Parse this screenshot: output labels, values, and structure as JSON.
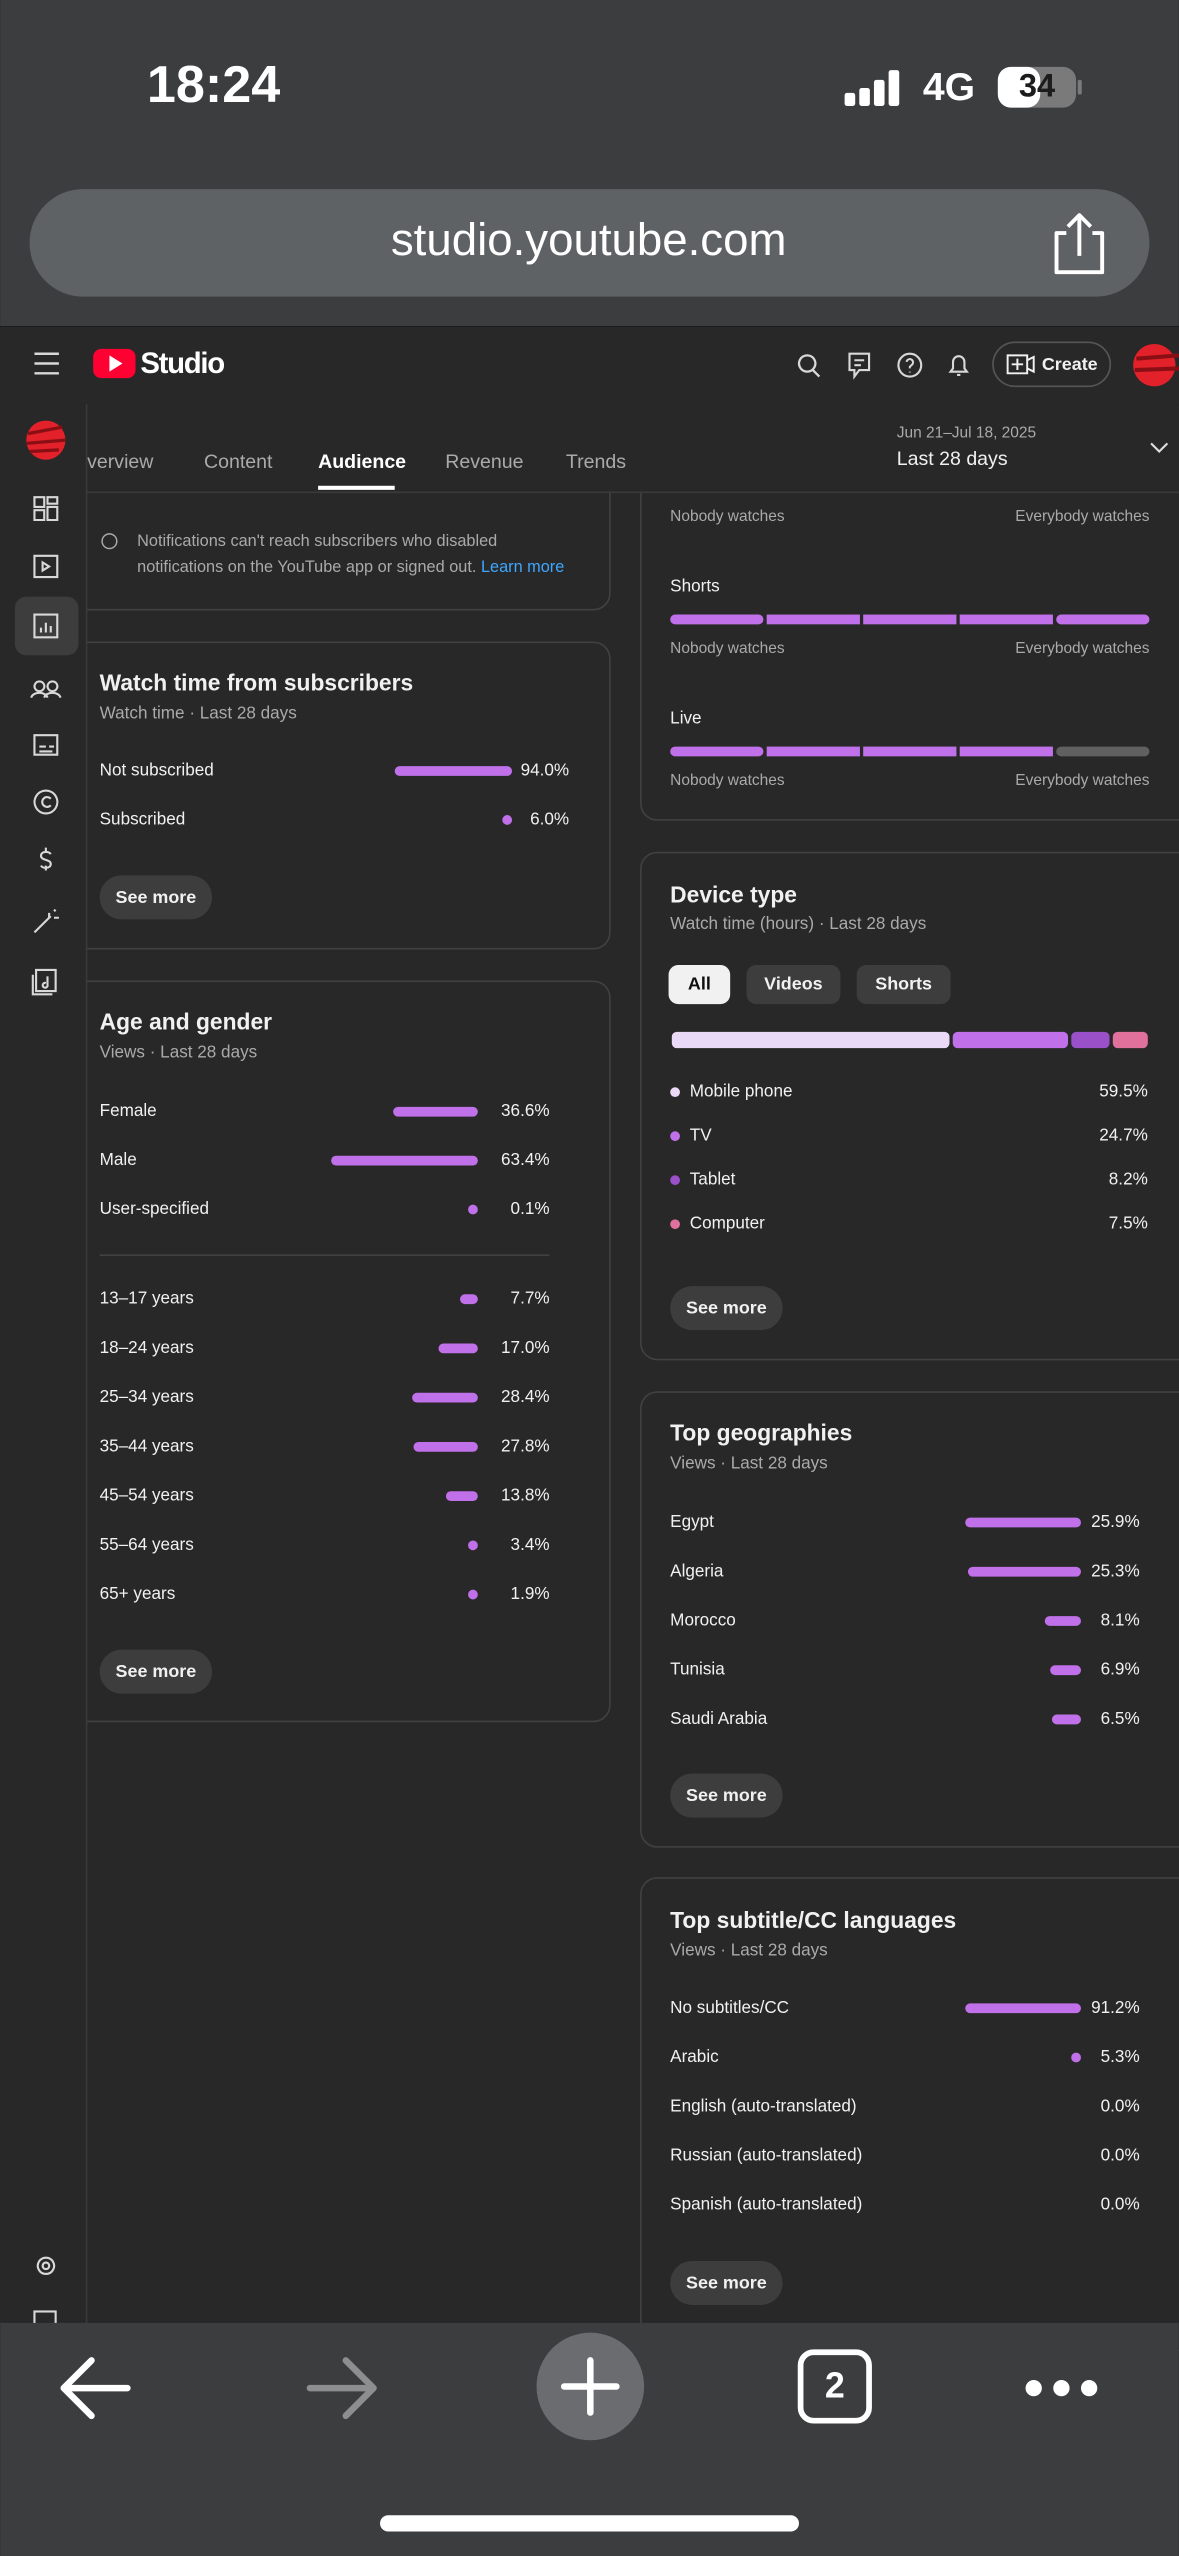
{
  "status": {
    "time": "18:24",
    "network": "4G",
    "battery": "34"
  },
  "browser": {
    "url": "studio.youtube.com",
    "tab_count": "2"
  },
  "header": {
    "logo": "Studio",
    "create": "Create"
  },
  "tabs": {
    "items": [
      "Overview",
      "Content",
      "Audience",
      "Revenue",
      "Trends"
    ],
    "active": 2
  },
  "date": {
    "range": "Jun 21–Jul 18, 2025",
    "period": "Last 28 days"
  },
  "notice": {
    "text": "Notifications can't reach subscribers who disabled notifications on the YouTube app or signed out.",
    "link": "Learn more"
  },
  "retention": {
    "top_scale": [
      "Nobody watches",
      "Everybody watches"
    ],
    "rows": [
      {
        "name": "Shorts",
        "scale": [
          "Nobody watches",
          "Everybody watches"
        ],
        "segment_colors": [
          "#c070e8",
          "#c070e8",
          "#c070e8",
          "#c070e8",
          "#c070e8"
        ]
      },
      {
        "name": "Live",
        "scale": [
          "Nobody watches",
          "Everybody watches"
        ],
        "segment_colors": [
          "#c070e8",
          "#c070e8",
          "#c070e8",
          "#c070e8",
          "#606060"
        ]
      }
    ]
  },
  "subscribers": {
    "title": "Watch time from subscribers",
    "subtitle": "Watch time · Last 28 days",
    "rows": [
      {
        "label": "Not subscribed",
        "value": 94.0,
        "value_label": "94.0%"
      },
      {
        "label": "Subscribed",
        "value": 6.0,
        "value_label": "6.0%"
      }
    ],
    "button": "See more"
  },
  "age_gender": {
    "title": "Age and gender",
    "subtitle": "Views · Last 28 days",
    "gender": [
      {
        "label": "Female",
        "value": 36.6,
        "value_label": "36.6%"
      },
      {
        "label": "Male",
        "value": 63.4,
        "value_label": "63.4%"
      },
      {
        "label": "User-specified",
        "value": 0.1,
        "value_label": "0.1%"
      }
    ],
    "age": [
      {
        "label": "13–17 years",
        "value": 7.7,
        "value_label": "7.7%"
      },
      {
        "label": "18–24 years",
        "value": 17.0,
        "value_label": "17.0%"
      },
      {
        "label": "25–34 years",
        "value": 28.4,
        "value_label": "28.4%"
      },
      {
        "label": "35–44 years",
        "value": 27.8,
        "value_label": "27.8%"
      },
      {
        "label": "45–54 years",
        "value": 13.8,
        "value_label": "13.8%"
      },
      {
        "label": "55–64 years",
        "value": 3.4,
        "value_label": "3.4%"
      },
      {
        "label": "65+ years",
        "value": 1.9,
        "value_label": "1.9%"
      }
    ],
    "button": "See more"
  },
  "device": {
    "title": "Device type",
    "subtitle": "Watch time (hours) · Last 28 days",
    "filters": [
      "All",
      "Videos",
      "Shorts"
    ],
    "active_filter": 0,
    "rows": [
      {
        "label": "Mobile phone",
        "value": 59.5,
        "value_label": "59.5%",
        "color": "#ead9f7"
      },
      {
        "label": "TV",
        "value": 24.7,
        "value_label": "24.7%",
        "color": "#c070e8"
      },
      {
        "label": "Tablet",
        "value": 8.2,
        "value_label": "8.2%",
        "color": "#9950c8"
      },
      {
        "label": "Computer",
        "value": 7.5,
        "value_label": "7.5%",
        "color": "#e0709c"
      }
    ],
    "button": "See more"
  },
  "geographies": {
    "title": "Top geographies",
    "subtitle": "Views · Last 28 days",
    "rows": [
      {
        "label": "Egypt",
        "value": 25.9,
        "value_label": "25.9%"
      },
      {
        "label": "Algeria",
        "value": 25.3,
        "value_label": "25.3%"
      },
      {
        "label": "Morocco",
        "value": 8.1,
        "value_label": "8.1%"
      },
      {
        "label": "Tunisia",
        "value": 6.9,
        "value_label": "6.9%"
      },
      {
        "label": "Saudi Arabia",
        "value": 6.5,
        "value_label": "6.5%"
      }
    ],
    "button": "See more"
  },
  "subtitles": {
    "title": "Top subtitle/CC languages",
    "subtitle": "Views · Last 28 days",
    "rows": [
      {
        "label": "No subtitles/CC",
        "value": 91.2,
        "value_label": "91.2%"
      },
      {
        "label": "Arabic",
        "value": 5.3,
        "value_label": "5.3%"
      },
      {
        "label": "English (auto-translated)",
        "value": 0.0,
        "value_label": "0.0%"
      },
      {
        "label": "Russian (auto-translated)",
        "value": 0.0,
        "value_label": "0.0%"
      },
      {
        "label": "Spanish (auto-translated)",
        "value": 0.0,
        "value_label": "0.0%"
      }
    ],
    "button": "See more"
  }
}
